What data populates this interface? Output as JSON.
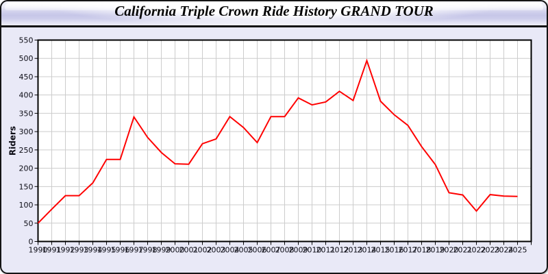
{
  "window": {
    "title": "California Triple Crown Ride History GRAND TOUR"
  },
  "chart_data": {
    "type": "line",
    "title": "California Triple Crown Ride History GRAND TOUR",
    "xlabel": "",
    "ylabel": "Riders",
    "x": [
      1990,
      1991,
      1992,
      1993,
      1994,
      1995,
      1996,
      1997,
      1998,
      1999,
      2000,
      2001,
      2002,
      2003,
      2004,
      2005,
      2006,
      2007,
      2008,
      2009,
      2010,
      2011,
      2012,
      2013,
      2014,
      2015,
      2016,
      2017,
      2018,
      2019,
      2020,
      2021,
      2022,
      2023,
      2024,
      2025
    ],
    "series": [
      {
        "name": "Riders",
        "color": "#ff0000",
        "values": [
          50,
          88,
          125,
          125,
          160,
          224,
          224,
          340,
          284,
          243,
          212,
          211,
          267,
          280,
          341,
          311,
          270,
          341,
          341,
          392,
          373,
          381,
          410,
          385,
          494,
          383,
          346,
          317,
          259,
          210,
          133,
          127,
          83,
          128,
          124,
          123
        ]
      }
    ],
    "ylim": [
      0,
      550
    ],
    "yticks": [
      0,
      50,
      100,
      150,
      200,
      250,
      300,
      350,
      400,
      450,
      500,
      550
    ],
    "grid": true,
    "legend": "none",
    "plot_background": "#ffffff",
    "panel_background": "#e9e9f7",
    "gridline_color": "#cccccc",
    "axis_color": "#000000"
  }
}
